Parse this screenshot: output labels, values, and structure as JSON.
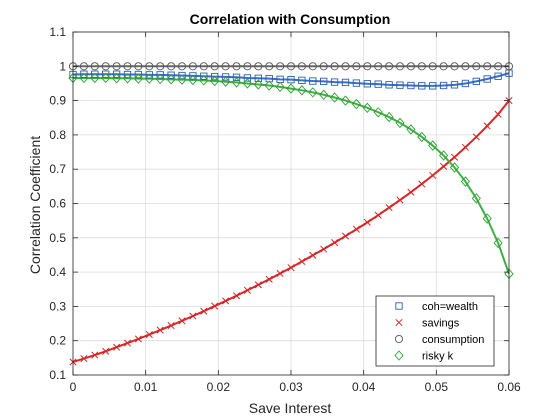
{
  "chart_data": {
    "type": "line",
    "title": "Correlation with Consumption",
    "xlabel": "Save Interest",
    "ylabel": "Correlation Coefficient",
    "xlim": [
      0,
      0.06
    ],
    "ylim": [
      0.1,
      1.1
    ],
    "xticks": [
      0,
      0.01,
      0.02,
      0.03,
      0.04,
      0.05,
      0.06
    ],
    "yticks": [
      0.1,
      0.2,
      0.3,
      0.4,
      0.5,
      0.6,
      0.7,
      0.8,
      0.9,
      1.0,
      1.1
    ],
    "xtick_labels": [
      "0",
      "0.01",
      "0.02",
      "0.03",
      "0.04",
      "0.05",
      "0.06"
    ],
    "ytick_labels": [
      "0.1",
      "0.2",
      "0.3",
      "0.4",
      "0.5",
      "0.6",
      "0.7",
      "0.8",
      "0.9",
      "1",
      "1.1"
    ],
    "grid": true,
    "legend_position": "bottom-right",
    "x": [
      0,
      0.0015,
      0.003,
      0.0045,
      0.006,
      0.0075,
      0.009,
      0.0105,
      0.012,
      0.0135,
      0.015,
      0.0165,
      0.018,
      0.0195,
      0.021,
      0.0225,
      0.024,
      0.0255,
      0.027,
      0.0285,
      0.03,
      0.0315,
      0.033,
      0.0345,
      0.036,
      0.0375,
      0.039,
      0.0405,
      0.042,
      0.0435,
      0.045,
      0.0465,
      0.048,
      0.0495,
      0.051,
      0.0525,
      0.054,
      0.0555,
      0.057,
      0.0585,
      0.06
    ],
    "series": [
      {
        "name": "coh=wealth",
        "marker": "square",
        "color": "#2b5fad",
        "line_color": "#3a6fc4",
        "values": [
          0.976,
          0.977,
          0.977,
          0.977,
          0.977,
          0.976,
          0.976,
          0.975,
          0.975,
          0.974,
          0.973,
          0.972,
          0.971,
          0.97,
          0.969,
          0.968,
          0.966,
          0.965,
          0.964,
          0.962,
          0.961,
          0.959,
          0.957,
          0.956,
          0.954,
          0.953,
          0.951,
          0.949,
          0.948,
          0.946,
          0.945,
          0.944,
          0.943,
          0.943,
          0.944,
          0.946,
          0.95,
          0.956,
          0.963,
          0.971,
          0.98
        ]
      },
      {
        "name": "savings",
        "marker": "x",
        "color": "#d62728",
        "line_color": "#d62728",
        "values": [
          0.138,
          0.148,
          0.158,
          0.169,
          0.181,
          0.193,
          0.205,
          0.218,
          0.231,
          0.244,
          0.258,
          0.272,
          0.286,
          0.301,
          0.316,
          0.331,
          0.347,
          0.363,
          0.379,
          0.396,
          0.413,
          0.431,
          0.449,
          0.467,
          0.486,
          0.505,
          0.525,
          0.545,
          0.566,
          0.588,
          0.61,
          0.633,
          0.657,
          0.682,
          0.708,
          0.735,
          0.764,
          0.794,
          0.826,
          0.86,
          0.9
        ]
      },
      {
        "name": "consumption",
        "marker": "circle",
        "color": "#555555",
        "line_color": "#666666",
        "values": [
          1,
          1,
          1,
          1,
          1,
          1,
          1,
          1,
          1,
          1,
          1,
          1,
          1,
          1,
          1,
          1,
          1,
          1,
          1,
          1,
          1,
          1,
          1,
          1,
          1,
          1,
          1,
          1,
          1,
          1,
          1,
          1,
          1,
          1,
          1,
          1,
          1,
          1,
          1,
          1,
          1
        ]
      },
      {
        "name": "risky k",
        "marker": "diamond",
        "color": "#2ca02c",
        "line_color": "#3cb043",
        "values": [
          0.966,
          0.966,
          0.966,
          0.966,
          0.965,
          0.965,
          0.964,
          0.964,
          0.963,
          0.962,
          0.961,
          0.96,
          0.959,
          0.957,
          0.955,
          0.953,
          0.95,
          0.947,
          0.944,
          0.94,
          0.935,
          0.93,
          0.924,
          0.917,
          0.909,
          0.9,
          0.89,
          0.879,
          0.866,
          0.852,
          0.835,
          0.816,
          0.794,
          0.769,
          0.74,
          0.705,
          0.664,
          0.615,
          0.556,
          0.485,
          0.395
        ]
      }
    ]
  }
}
